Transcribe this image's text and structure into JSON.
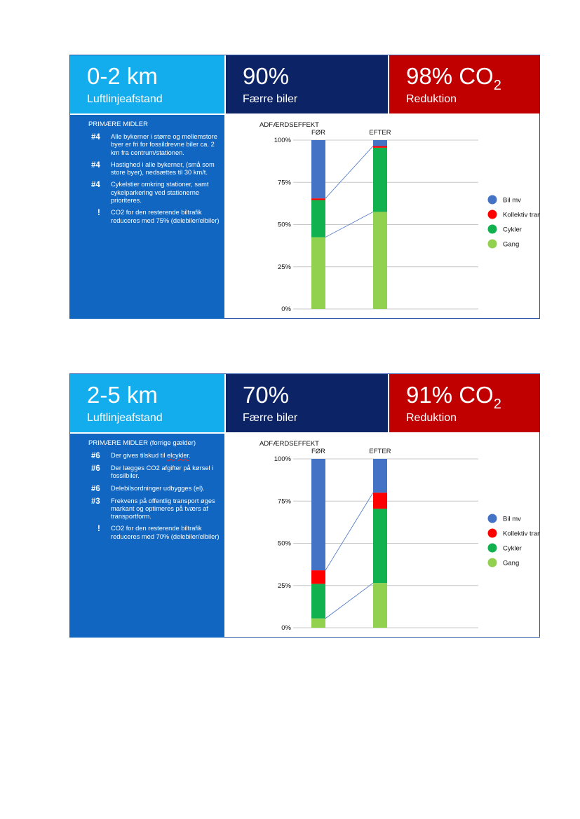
{
  "slides": [
    {
      "banner": {
        "distance": "0-2 km",
        "distance_sub": "Luftlinjeafstand",
        "cars_pct": "90%",
        "cars_label": "Færre biler",
        "co2_main": "98% CO",
        "co2_sub": "2",
        "co2_label": "Reduktion"
      },
      "panel": {
        "heading": "PRIMÆRE MIDLER",
        "rules": [
          {
            "mark": "#4",
            "text": "Alle bykerner i større og mellemstore byer er fri for fossildrevne biler ca. 2 km fra centrum/stationen."
          },
          {
            "mark": "#4",
            "text": "Hastighed i alle bykerner, (små som store byer), nedsættes til 30 km/t."
          },
          {
            "mark": "#4",
            "text": "Cykelstier omkring stationer, samt cykelparkering ved stationerne prioriteres."
          },
          {
            "mark": "!",
            "text": "CO2 for den resterende biltrafik reduceres med 75% (delebiler/elbiler)"
          }
        ]
      },
      "chart_title": "ADFÆRDSEFFEKT"
    },
    {
      "banner": {
        "distance": "2-5 km",
        "distance_sub": "Luftlinjeafstand",
        "cars_pct": "70%",
        "cars_label": "Færre biler",
        "co2_main": "91% CO",
        "co2_sub": "2",
        "co2_label": "Reduktion"
      },
      "panel": {
        "heading": "PRIMÆRE MIDLER (forrige gælder)",
        "rules": [
          {
            "mark": "#6",
            "text_pre": "Der gives tilskud til ",
            "text_squiggle": "elcykler",
            "text_post": "."
          },
          {
            "mark": "#6",
            "text": "Der lægges CO2 afgifter på kørsel i fossilbiler."
          },
          {
            "mark": "#6",
            "text": "Delebilsordninger udbygges (el)."
          },
          {
            "mark": "#3",
            "text": "Frekvens på offentlig transport øges markant og optimeres på tværs af transportform."
          },
          {
            "mark": "!",
            "text": "CO2 for den resterende biltrafik reduceres med 70% (delebiler/elbiler)"
          }
        ]
      },
      "chart_title": "ADFÆRDSEFFEKT"
    }
  ],
  "chart_data": [
    {
      "type": "bar",
      "stacked": true,
      "title": "ADFÆRDSEFFEKT",
      "categories": [
        "FØR",
        "EFTER"
      ],
      "y_ticks": [
        "0%",
        "25%",
        "50%",
        "75%",
        "100%"
      ],
      "ylim": [
        0,
        100
      ],
      "grid": true,
      "legend_position": "right",
      "series": [
        {
          "name": "Gang",
          "color": "#92d050",
          "values": [
            42.5,
            57.5
          ]
        },
        {
          "name": "Cykler",
          "color": "#12b14f",
          "values": [
            22,
            38
          ]
        },
        {
          "name": "Kollektiv transport",
          "color": "#ff0000",
          "values": [
            1,
            1
          ]
        },
        {
          "name": "Bil mv",
          "color": "#4472c4",
          "values": [
            34.5,
            3.5
          ]
        }
      ]
    },
    {
      "type": "bar",
      "stacked": true,
      "title": "ADFÆRDSEFFEKT",
      "categories": [
        "FØR",
        "EFTER"
      ],
      "y_ticks": [
        "0%",
        "25%",
        "50%",
        "75%",
        "100%"
      ],
      "ylim": [
        0,
        100
      ],
      "grid": true,
      "legend_position": "right",
      "series": [
        {
          "name": "Gang",
          "color": "#92d050",
          "values": [
            5.5,
            26.5
          ]
        },
        {
          "name": "Cykler",
          "color": "#12b14f",
          "values": [
            20.5,
            44
          ]
        },
        {
          "name": "Kollektiv transport",
          "color": "#ff0000",
          "values": [
            8,
            9.5
          ]
        },
        {
          "name": "Bil mv",
          "color": "#4472c4",
          "values": [
            66,
            20
          ]
        }
      ]
    }
  ]
}
